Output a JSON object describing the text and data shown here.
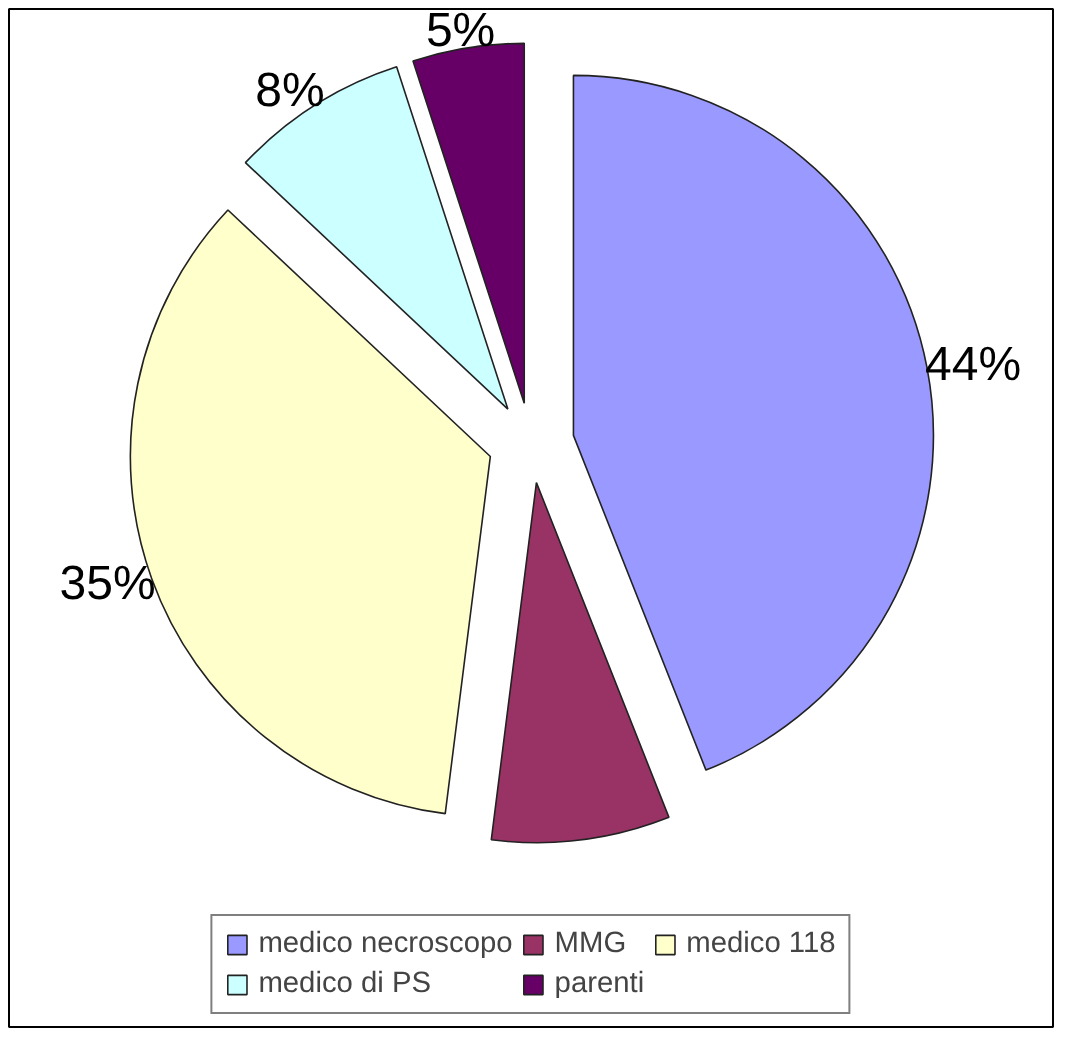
{
  "chart_data": {
    "type": "pie",
    "categories": [
      "medico necroscopo",
      "MMG",
      "medico 118",
      "medico di PS",
      "parenti"
    ],
    "values": [
      44,
      8,
      35,
      8,
      5
    ],
    "colors": [
      "#9999ff",
      "#993366",
      "#ffffcc",
      "#ccffff",
      "#660066"
    ],
    "value_labels": [
      "44%",
      null,
      "35%",
      "8%",
      "5%"
    ],
    "legend": "bottom"
  }
}
